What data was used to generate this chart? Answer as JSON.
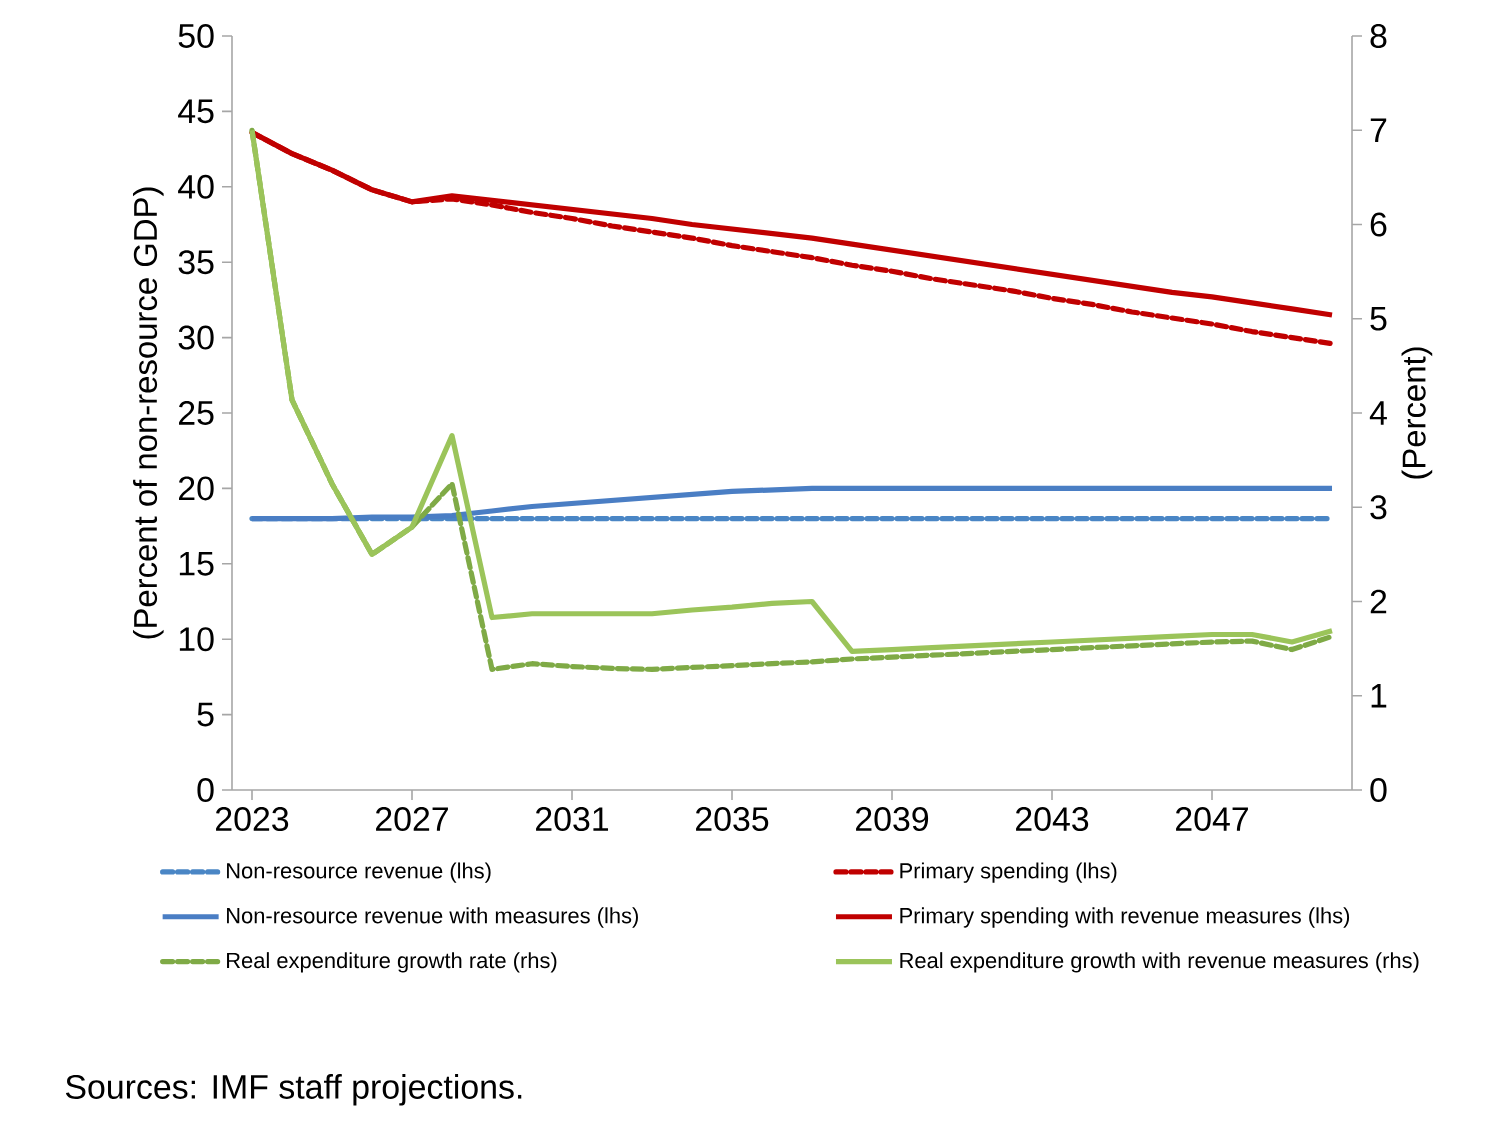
{
  "chart_data": {
    "type": "line",
    "ylabel": "(Percent of non-resource GDP)",
    "y2label": "(Percent)",
    "x": [
      2023,
      2024,
      2025,
      2026,
      2027,
      2028,
      2029,
      2030,
      2031,
      2032,
      2033,
      2034,
      2035,
      2036,
      2037,
      2038,
      2039,
      2040,
      2041,
      2042,
      2043,
      2044,
      2045,
      2046,
      2047,
      2048,
      2049,
      2050
    ],
    "xlim": [
      2022.5,
      2050.5
    ],
    "xticks": [
      2023,
      2027,
      2031,
      2035,
      2039,
      2043,
      2047
    ],
    "ylim": [
      0,
      50
    ],
    "yticks": [
      0,
      5,
      10,
      15,
      20,
      25,
      30,
      35,
      40,
      45,
      50
    ],
    "y2lim": [
      0,
      8
    ],
    "y2ticks": [
      0,
      1,
      2,
      3,
      4,
      5,
      6,
      7,
      8
    ],
    "legend": "bottom",
    "series": [
      {
        "name": "Non-resource revenue (lhs)",
        "color": "#4a86c5",
        "line_style": "dashed",
        "values": [
          18.0,
          18.0,
          18.0,
          18.0,
          18.0,
          18.0,
          18.0,
          18.0,
          18.0,
          18.0,
          18.0,
          18.0,
          18.0,
          18.0,
          18.0,
          18.0,
          18.0,
          18.0,
          18.0,
          18.0,
          18.0,
          18.0,
          18.0,
          18.0,
          18.0,
          18.0,
          18.0,
          18.0
        ]
      },
      {
        "name": "Primary spending (lhs)",
        "color": "#c00000",
        "line_style": "dashed",
        "values": [
          43.6,
          42.2,
          41.1,
          39.8,
          39.0,
          39.2,
          38.8,
          38.3,
          37.9,
          37.4,
          37.0,
          36.6,
          36.1,
          35.7,
          35.3,
          34.8,
          34.4,
          33.9,
          33.5,
          33.1,
          32.6,
          32.2,
          31.7,
          31.3,
          30.9,
          30.4,
          30.0,
          29.6
        ]
      },
      {
        "name": "Non-resource revenue with measures (lhs)",
        "color": "#4a7ec4",
        "line_style": "solid",
        "values": [
          18.0,
          18.0,
          18.0,
          18.1,
          18.1,
          18.2,
          18.5,
          18.8,
          19.0,
          19.2,
          19.4,
          19.6,
          19.8,
          19.9,
          20.0,
          20.0,
          20.0,
          20.0,
          20.0,
          20.0,
          20.0,
          20.0,
          20.0,
          20.0,
          20.0,
          20.0,
          20.0,
          20.0
        ]
      },
      {
        "name": "Primary spending with revenue measures (lhs)",
        "color": "#c00000",
        "line_style": "solid",
        "values": [
          43.6,
          42.2,
          41.1,
          39.8,
          39.0,
          39.4,
          39.1,
          38.8,
          38.5,
          38.2,
          37.9,
          37.5,
          37.2,
          36.9,
          36.6,
          36.2,
          35.8,
          35.4,
          35.0,
          34.6,
          34.2,
          33.8,
          33.4,
          33.0,
          32.7,
          32.3,
          31.9,
          31.5
        ]
      },
      {
        "name": "Real expenditure growth rate (rhs)",
        "color": "#7faa46",
        "line_style": "dashed",
        "axis": "y2",
        "values": [
          7.0,
          4.14,
          3.25,
          2.5,
          2.79,
          3.25,
          1.28,
          1.34,
          1.31,
          1.29,
          1.28,
          1.3,
          1.32,
          1.34,
          1.36,
          1.39,
          1.41,
          1.43,
          1.45,
          1.47,
          1.49,
          1.51,
          1.53,
          1.55,
          1.57,
          1.58,
          1.49,
          1.63
        ]
      },
      {
        "name": "Real expenditure growth with revenue measures (rhs)",
        "color": "#9bc45a",
        "line_style": "solid",
        "axis": "y2",
        "values": [
          7.0,
          4.14,
          3.25,
          2.5,
          2.79,
          3.76,
          1.83,
          1.87,
          1.87,
          1.87,
          1.87,
          1.91,
          1.94,
          1.98,
          2.0,
          1.47,
          1.49,
          1.51,
          1.53,
          1.55,
          1.57,
          1.59,
          1.61,
          1.63,
          1.65,
          1.65,
          1.57,
          1.69
        ]
      }
    ],
    "annotations": [
      "Sources: IMF staff projections."
    ]
  }
}
